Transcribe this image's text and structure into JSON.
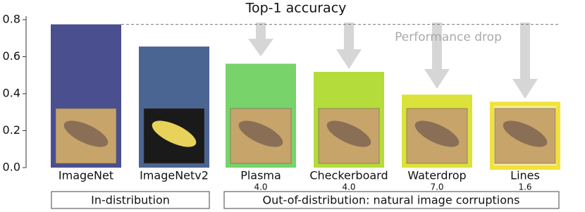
{
  "chart_data": {
    "type": "bar",
    "title": "Top-1 accuracy",
    "categories": [
      "ImageNet",
      "ImageNetv2",
      "Plasma",
      "Checkerboard",
      "Waterdrop",
      "Lines"
    ],
    "sublabels": [
      null,
      null,
      "4.0",
      "4.0",
      "7.0",
      "1.6"
    ],
    "values": [
      0.775,
      0.655,
      0.562,
      0.518,
      0.395,
      0.345
    ],
    "colors": [
      "#4a4f8f",
      "#4a6592",
      "#78d36a",
      "#b4dc3a",
      "#dbe23a",
      "#f2e23a"
    ],
    "ylim": [
      0,
      0.8
    ],
    "yticks": [
      {
        "value": 0,
        "label": "0.0"
      },
      {
        "value": 0.2,
        "label": "0.2"
      },
      {
        "value": 0.4,
        "label": "0.4"
      },
      {
        "value": 0.6,
        "label": "0.6"
      },
      {
        "value": 0.8,
        "label": "0.8"
      }
    ],
    "annotation": "Performance drop",
    "groups": [
      "In-distribution",
      "Out-of-distribution: natural image corruptions"
    ]
  }
}
